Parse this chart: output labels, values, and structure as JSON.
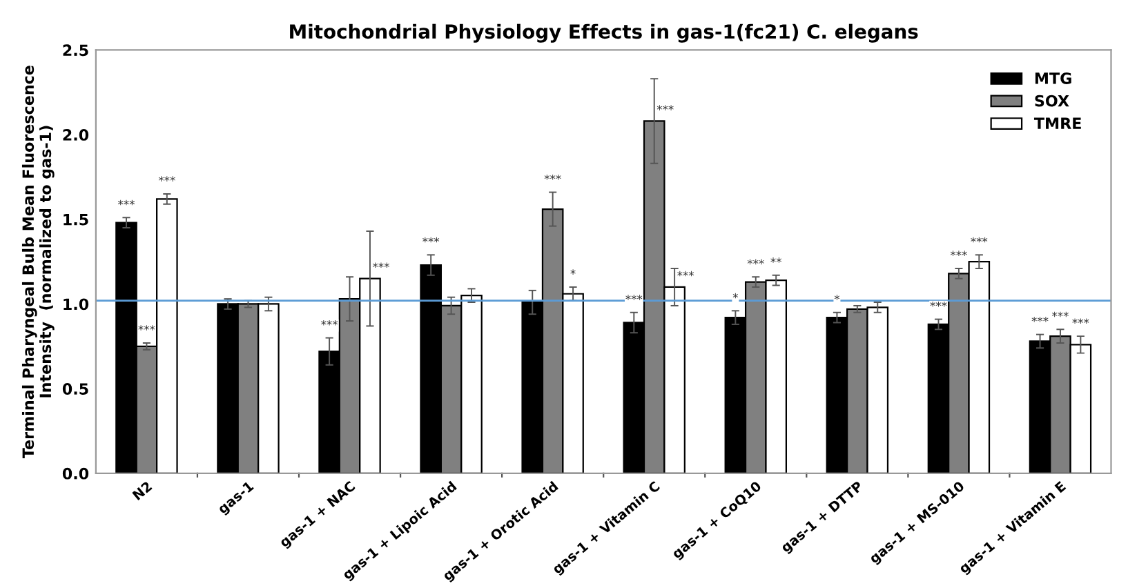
{
  "chart_data": {
    "type": "bar",
    "title": "Mitochondrial Physiology Effects in gas-1(fc21) C. elegans",
    "ylabel": "Terminal Pharyngeal Bulb Mean Fluorescence\nIntensity  (normalized to gas-1)",
    "categories": [
      "N2",
      "gas-1",
      "gas-1 + NAC",
      "gas-1 + Lipoic Acid",
      "gas-1 + Orotic Acid",
      "gas-1 + Vitamin C",
      "gas-1 + CoQ10",
      "gas-1 + DTTP",
      "gas-1 + MS-010",
      "gas-1 + Vitamin E"
    ],
    "series": [
      {
        "name": "MTG",
        "color": "#000000",
        "values": [
          1.48,
          1.0,
          0.72,
          1.23,
          1.01,
          0.89,
          0.92,
          0.92,
          0.88,
          0.78
        ],
        "errors": [
          0.03,
          0.03,
          0.08,
          0.06,
          0.07,
          0.06,
          0.04,
          0.03,
          0.03,
          0.04
        ],
        "value_labels": [
          "***",
          null,
          "***",
          "***",
          null,
          "***",
          "*",
          "*",
          "***",
          "***"
        ]
      },
      {
        "name": "SOX",
        "color": "#808080",
        "values": [
          0.75,
          1.0,
          1.03,
          0.99,
          1.56,
          2.08,
          1.13,
          0.97,
          1.18,
          0.81
        ],
        "errors": [
          0.02,
          0.02,
          0.13,
          0.05,
          0.1,
          0.25,
          0.03,
          0.02,
          0.03,
          0.04
        ],
        "value_labels": [
          "***",
          null,
          null,
          null,
          "***",
          "***",
          "***",
          null,
          "***",
          "***"
        ]
      },
      {
        "name": "TMRE",
        "color": "#ffffff",
        "values": [
          1.62,
          1.0,
          1.15,
          1.05,
          1.06,
          1.1,
          1.14,
          0.98,
          1.25,
          0.76
        ],
        "errors": [
          0.03,
          0.04,
          0.28,
          0.04,
          0.04,
          0.11,
          0.03,
          0.03,
          0.04,
          0.05
        ],
        "value_labels": [
          "***",
          null,
          "***",
          null,
          "*",
          "***",
          "**",
          null,
          "***",
          "***"
        ]
      }
    ],
    "ylim": [
      0,
      2.5
    ],
    "yticks": [
      {
        "value": 0,
        "label": "0.0"
      },
      {
        "value": 0.5,
        "label": "0.5"
      },
      {
        "value": 1,
        "label": "1.0"
      },
      {
        "value": 1.5,
        "label": "1.5"
      },
      {
        "value": 2,
        "label": "2.0"
      },
      {
        "value": 2.5,
        "label": "2.5"
      }
    ],
    "ref_lines": [
      {
        "axis": "y",
        "value": 1.02,
        "color": "#5b9bd5"
      }
    ],
    "legend": "top right",
    "grid": false
  }
}
